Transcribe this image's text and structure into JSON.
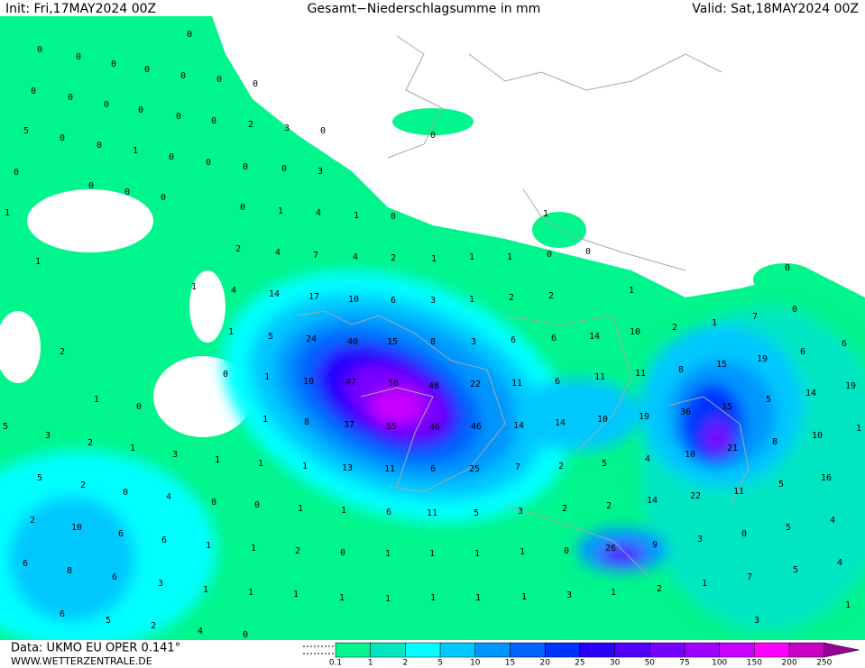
{
  "header": {
    "init": "Init: Fri,17MAY2024 00Z",
    "title": "Gesamt−Niederschlagsumme in mm",
    "valid": "Valid: Sat,18MAY2024 00Z"
  },
  "footer": {
    "data": "Data: UKMO EU OPER 0.141°",
    "site": "WWW.WETTERZENTRALE.DE"
  },
  "legend": {
    "ticks": [
      0.1,
      1,
      2,
      5,
      10,
      15,
      20,
      25,
      30,
      50,
      75,
      100,
      150,
      200,
      250
    ],
    "colors": [
      "#00f58c",
      "#00e6c3",
      "#00ffff",
      "#00c8ff",
      "#0096ff",
      "#0064ff",
      "#0032ff",
      "#2800ff",
      "#5000ff",
      "#7800ff",
      "#a000ff",
      "#c800ff",
      "#ff00ff",
      "#c800c8",
      "#960096"
    ]
  },
  "map": {
    "labels": [
      0,
      0,
      0,
      0,
      0,
      0,
      0,
      0,
      0,
      0,
      0,
      0,
      0,
      0,
      2,
      3,
      0,
      5,
      0,
      0,
      1,
      0,
      0,
      0,
      0,
      3,
      0,
      0,
      0,
      0,
      0,
      1,
      4,
      1,
      0,
      0,
      1,
      1,
      2,
      4,
      7,
      4,
      2,
      1,
      1,
      1,
      0,
      0,
      1,
      0,
      0,
      1,
      4,
      14,
      17,
      10,
      6,
      3,
      1,
      2,
      2,
      1,
      7,
      1,
      2,
      10,
      14,
      6,
      6,
      3,
      8,
      15,
      40,
      24,
      5,
      1,
      2,
      6,
      6,
      19,
      15,
      8,
      11,
      11,
      6,
      11,
      22,
      48,
      58,
      47,
      10,
      1,
      0,
      19,
      14,
      5,
      15,
      36,
      19,
      10,
      14,
      14,
      46,
      46,
      55,
      37,
      8,
      1,
      0,
      1,
      5,
      3,
      2,
      1,
      3,
      1,
      1,
      1,
      13,
      11,
      6,
      25,
      7,
      2,
      5,
      4,
      10,
      21,
      8,
      10,
      1,
      16,
      5,
      11,
      22,
      14,
      2,
      2,
      3,
      5,
      11,
      6,
      1,
      1,
      0,
      0,
      4,
      0,
      2,
      5,
      2,
      10,
      6,
      6,
      1,
      1,
      2,
      0,
      1,
      1,
      1,
      1,
      0,
      26,
      9,
      3,
      0,
      5,
      4,
      4,
      5,
      7,
      1,
      2,
      1,
      3,
      1,
      1,
      1,
      1,
      1,
      1,
      1,
      1,
      3,
      6,
      8,
      6,
      6,
      5,
      2,
      4,
      0,
      3,
      1
    ]
  }
}
